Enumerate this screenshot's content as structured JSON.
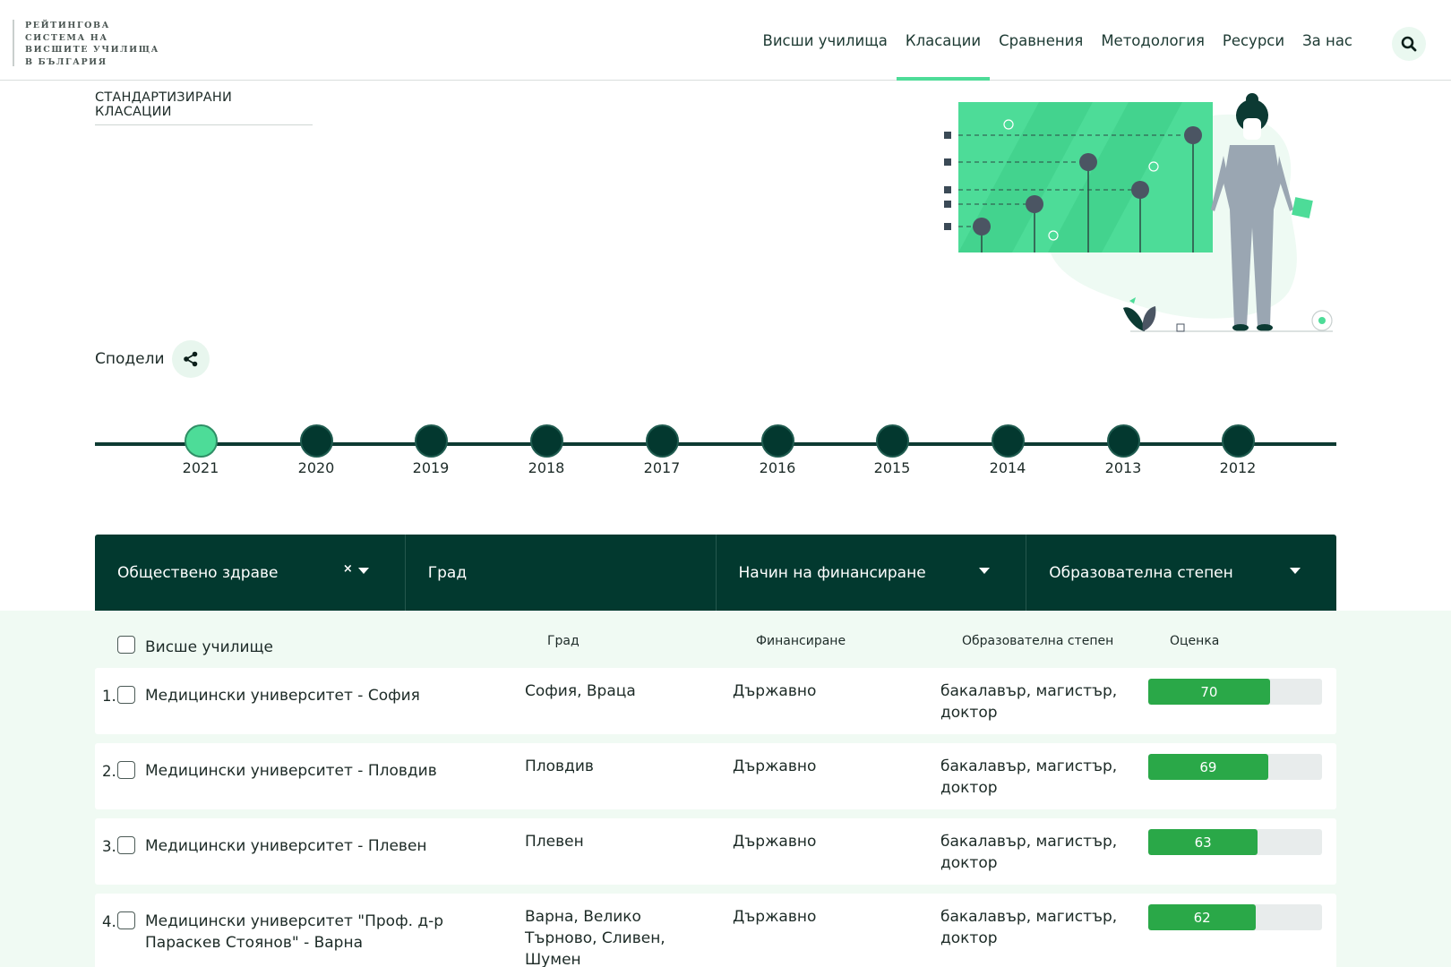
{
  "logo": {
    "lines": [
      "РЕЙТИНГОВА",
      "СИСТЕМА НА",
      "ВИСШИТЕ УЧИЛИЩА",
      "В БЪЛГАРИЯ"
    ]
  },
  "nav": {
    "items": [
      {
        "label": "Висши училища",
        "active": false
      },
      {
        "label": "Класации",
        "active": true
      },
      {
        "label": "Сравнения",
        "active": false
      },
      {
        "label": "Методология",
        "active": false
      },
      {
        "label": "Ресурси",
        "active": false
      },
      {
        "label": "За нас",
        "active": false
      }
    ],
    "search_icon": "search-icon"
  },
  "section": {
    "title": "СТАНДАРТИЗИРАНИ КЛАСАЦИИ"
  },
  "share": {
    "label": "Сподели",
    "icon": "share-icon"
  },
  "timeline": {
    "years": [
      "2021",
      "2020",
      "2019",
      "2018",
      "2017",
      "2016",
      "2015",
      "2014",
      "2013",
      "2012"
    ],
    "selected": "2021"
  },
  "filters": {
    "field": {
      "value": "Обществено здраве",
      "clear": "×"
    },
    "city": {
      "placeholder": "Град"
    },
    "funding": {
      "label": "Начин на финансиране"
    },
    "degree": {
      "label": "Образователна степен"
    }
  },
  "table": {
    "headers": {
      "name": "Висше училище",
      "city": "Град",
      "funding": "Финансиране",
      "degree": "Образователна степен",
      "score": "Оценка"
    },
    "score_max": 100,
    "rows": [
      {
        "num": "1.",
        "name": "Медицински университет - София",
        "city": "София, Враца",
        "funding": "Държавно",
        "degree": "бакалавър, магистър, доктор",
        "score": 70
      },
      {
        "num": "2.",
        "name": "Медицински университет - Пловдив",
        "city": "Пловдив",
        "funding": "Държавно",
        "degree": "бакалавър, магистър, доктор",
        "score": 69
      },
      {
        "num": "3.",
        "name": "Медицински университет - Плевен",
        "city": "Плевен",
        "funding": "Държавно",
        "degree": "бакалавър, магистър, доктор",
        "score": 63
      },
      {
        "num": "4.",
        "name": "Медицински университет \"Проф. д-р Параскев Стоянов\" - Варна",
        "city": "Варна, Велико Търново, Сливен, Шумен",
        "funding": "Държавно",
        "degree": "бакалавър, магистър, доктор",
        "score": 62
      }
    ]
  },
  "colors": {
    "accent": "#4ddc98",
    "dark": "#02392f",
    "score_fill": "#2aa848",
    "band": "#f0faf3"
  }
}
